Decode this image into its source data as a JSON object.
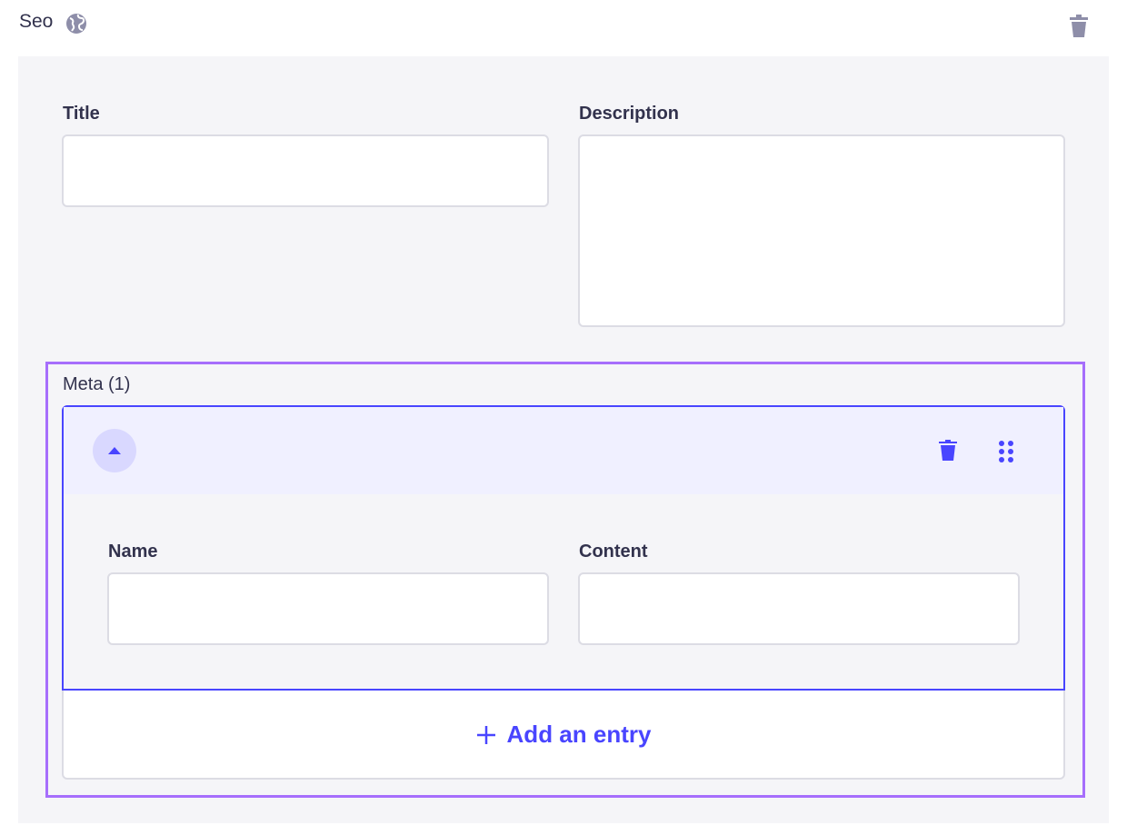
{
  "component": {
    "title": "Seo",
    "icon": "globe-icon",
    "delete_icon": "trash-icon"
  },
  "fields": {
    "title": {
      "label": "Title",
      "value": ""
    },
    "description": {
      "label": "Description",
      "value": ""
    }
  },
  "meta": {
    "label": "Meta (1)",
    "entries": [
      {
        "name": {
          "label": "Name",
          "value": ""
        },
        "content": {
          "label": "Content",
          "value": ""
        }
      }
    ],
    "add_label": "Add an entry"
  },
  "colors": {
    "accent": "#4945ff",
    "highlight": "#a66efc"
  }
}
